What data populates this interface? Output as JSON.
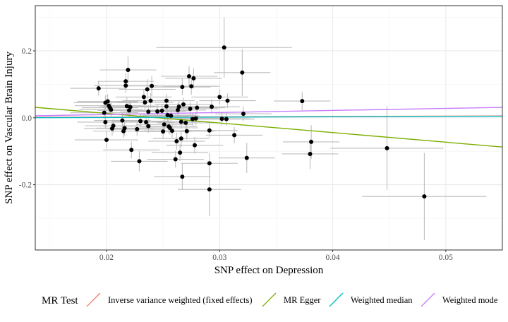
{
  "chart_data": {
    "type": "scatter",
    "xlabel": "SNP effect on Depression",
    "ylabel": "SNP effect on Vascular Brain Injury",
    "xlim": [
      0.0137,
      0.055
    ],
    "ylim": [
      -0.395,
      0.335
    ],
    "x_ticks": [
      {
        "value": 0.02,
        "label": "0.02"
      },
      {
        "value": 0.03,
        "label": "0.03"
      },
      {
        "value": 0.04,
        "label": "0.04"
      },
      {
        "value": 0.05,
        "label": "0.05"
      }
    ],
    "y_ticks": [
      {
        "value": -0.2,
        "label": "-0.2"
      },
      {
        "value": 0.0,
        "label": "0.0"
      },
      {
        "value": 0.2,
        "label": "0.2"
      }
    ],
    "grid": true,
    "legend": {
      "title": "MR Test",
      "position": "bottom"
    },
    "lines": [
      {
        "name": "Inverse variance weighted (fixed effects)",
        "color": "#F8766D",
        "intercept": 0.0,
        "slope": 0.1
      },
      {
        "name": "MR Egger",
        "color": "#7CAE00",
        "intercept": 0.0705,
        "slope": -2.87
      },
      {
        "name": "Weighted median",
        "color": "#00BFC4",
        "intercept": -0.0013,
        "slope": 0.11
      },
      {
        "name": "Weighted mode",
        "color": "#C77CFF",
        "intercept": -0.0025,
        "slope": 0.61
      }
    ],
    "points": [
      {
        "x": 0.0193,
        "y": 0.088,
        "sx": 0.0025,
        "sy": 0.022
      },
      {
        "x": 0.0198,
        "y": 0.015,
        "sx": 0.003,
        "sy": 0.02
      },
      {
        "x": 0.0199,
        "y": 0.045,
        "sx": 0.0028,
        "sy": 0.022
      },
      {
        "x": 0.0199,
        "y": -0.013,
        "sx": 0.0025,
        "sy": 0.02
      },
      {
        "x": 0.02,
        "y": -0.066,
        "sx": 0.0028,
        "sy": 0.025
      },
      {
        "x": 0.0201,
        "y": 0.049,
        "sx": 0.0027,
        "sy": 0.022
      },
      {
        "x": 0.0202,
        "y": 0.036,
        "sx": 0.003,
        "sy": 0.02
      },
      {
        "x": 0.0203,
        "y": 0.03,
        "sx": 0.0025,
        "sy": 0.022
      },
      {
        "x": 0.0204,
        "y": 0.024,
        "sx": 0.0028,
        "sy": 0.02
      },
      {
        "x": 0.0205,
        "y": -0.032,
        "sx": 0.0025,
        "sy": 0.022
      },
      {
        "x": 0.0206,
        "y": -0.024,
        "sx": 0.0025,
        "sy": 0.02
      },
      {
        "x": 0.0214,
        "y": -0.008,
        "sx": 0.0025,
        "sy": 0.022
      },
      {
        "x": 0.0215,
        "y": -0.04,
        "sx": 0.0027,
        "sy": 0.02
      },
      {
        "x": 0.0216,
        "y": -0.031,
        "sx": 0.0025,
        "sy": 0.022
      },
      {
        "x": 0.0217,
        "y": 0.109,
        "sx": 0.0025,
        "sy": 0.024
      },
      {
        "x": 0.0217,
        "y": 0.096,
        "sx": 0.0028,
        "sy": 0.022
      },
      {
        "x": 0.0218,
        "y": 0.035,
        "sx": 0.0025,
        "sy": 0.025
      },
      {
        "x": 0.0219,
        "y": 0.143,
        "sx": 0.0025,
        "sy": 0.04
      },
      {
        "x": 0.022,
        "y": 0.022,
        "sx": 0.0028,
        "sy": 0.022
      },
      {
        "x": 0.0221,
        "y": 0.032,
        "sx": 0.0025,
        "sy": 0.02
      },
      {
        "x": 0.0222,
        "y": -0.096,
        "sx": 0.0025,
        "sy": 0.025
      },
      {
        "x": 0.0227,
        "y": -0.034,
        "sx": 0.0025,
        "sy": 0.02
      },
      {
        "x": 0.0229,
        "y": -0.13,
        "sx": 0.0025,
        "sy": 0.03
      },
      {
        "x": 0.023,
        "y": -0.01,
        "sx": 0.0025,
        "sy": 0.02
      },
      {
        "x": 0.0233,
        "y": 0.062,
        "sx": 0.0025,
        "sy": 0.024
      },
      {
        "x": 0.0234,
        "y": 0.046,
        "sx": 0.0025,
        "sy": 0.022
      },
      {
        "x": 0.0235,
        "y": -0.013,
        "sx": 0.0025,
        "sy": 0.02
      },
      {
        "x": 0.0236,
        "y": 0.085,
        "sx": 0.0025,
        "sy": 0.03
      },
      {
        "x": 0.0237,
        "y": -0.025,
        "sx": 0.0025,
        "sy": 0.02
      },
      {
        "x": 0.0237,
        "y": 0.018,
        "sx": 0.0025,
        "sy": 0.02
      },
      {
        "x": 0.0239,
        "y": 0.051,
        "sx": 0.0025,
        "sy": 0.022
      },
      {
        "x": 0.024,
        "y": 0.095,
        "sx": 0.0025,
        "sy": 0.03
      },
      {
        "x": 0.0245,
        "y": 0.019,
        "sx": 0.0025,
        "sy": 0.02
      },
      {
        "x": 0.0249,
        "y": 0.021,
        "sx": 0.0025,
        "sy": 0.02
      },
      {
        "x": 0.025,
        "y": -0.041,
        "sx": 0.0025,
        "sy": 0.022
      },
      {
        "x": 0.0251,
        "y": -0.02,
        "sx": 0.0025,
        "sy": 0.02
      },
      {
        "x": 0.0253,
        "y": 0.034,
        "sx": 0.0025,
        "sy": 0.022
      },
      {
        "x": 0.0253,
        "y": 0.051,
        "sx": 0.0025,
        "sy": 0.02
      },
      {
        "x": 0.0254,
        "y": 0.008,
        "sx": 0.0025,
        "sy": 0.02
      },
      {
        "x": 0.0255,
        "y": -0.026,
        "sx": 0.0025,
        "sy": 0.02
      },
      {
        "x": 0.0256,
        "y": -0.03,
        "sx": 0.0025,
        "sy": 0.02
      },
      {
        "x": 0.0257,
        "y": 0.006,
        "sx": 0.0025,
        "sy": 0.02
      },
      {
        "x": 0.0258,
        "y": -0.039,
        "sx": 0.0025,
        "sy": 0.02
      },
      {
        "x": 0.0261,
        "y": -0.124,
        "sx": 0.0025,
        "sy": 0.025
      },
      {
        "x": 0.0262,
        "y": -0.07,
        "sx": 0.0025,
        "sy": 0.025
      },
      {
        "x": 0.0263,
        "y": 0.023,
        "sx": 0.0025,
        "sy": 0.02
      },
      {
        "x": 0.0264,
        "y": 0.033,
        "sx": 0.0025,
        "sy": 0.02
      },
      {
        "x": 0.0265,
        "y": -0.104,
        "sx": 0.0025,
        "sy": 0.025
      },
      {
        "x": 0.0266,
        "y": -0.062,
        "sx": 0.0025,
        "sy": 0.025
      },
      {
        "x": 0.0266,
        "y": -0.012,
        "sx": 0.0025,
        "sy": 0.02
      },
      {
        "x": 0.0267,
        "y": 0.092,
        "sx": 0.0025,
        "sy": 0.025
      },
      {
        "x": 0.0267,
        "y": -0.176,
        "sx": 0.0025,
        "sy": 0.04
      },
      {
        "x": 0.0268,
        "y": 0.04,
        "sx": 0.0025,
        "sy": 0.02
      },
      {
        "x": 0.027,
        "y": -0.015,
        "sx": 0.0025,
        "sy": 0.02
      },
      {
        "x": 0.0271,
        "y": -0.04,
        "sx": 0.0025,
        "sy": 0.025
      },
      {
        "x": 0.0273,
        "y": 0.124,
        "sx": 0.0025,
        "sy": 0.03
      },
      {
        "x": 0.0274,
        "y": 0.027,
        "sx": 0.0025,
        "sy": 0.02
      },
      {
        "x": 0.0275,
        "y": 0.094,
        "sx": 0.0025,
        "sy": 0.025
      },
      {
        "x": 0.0276,
        "y": -0.004,
        "sx": 0.0025,
        "sy": 0.02
      },
      {
        "x": 0.0277,
        "y": 0.118,
        "sx": 0.0025,
        "sy": 0.03
      },
      {
        "x": 0.0278,
        "y": -0.082,
        "sx": 0.0025,
        "sy": 0.025
      },
      {
        "x": 0.0279,
        "y": -0.002,
        "sx": 0.0025,
        "sy": 0.02
      },
      {
        "x": 0.028,
        "y": 0.03,
        "sx": 0.0025,
        "sy": 0.02
      },
      {
        "x": 0.0291,
        "y": -0.038,
        "sx": 0.0025,
        "sy": 0.02
      },
      {
        "x": 0.0291,
        "y": -0.136,
        "sx": 0.0025,
        "sy": 0.03
      },
      {
        "x": 0.0291,
        "y": -0.214,
        "sx": 0.0028,
        "sy": 0.08
      },
      {
        "x": 0.0293,
        "y": 0.033,
        "sx": 0.0025,
        "sy": 0.022
      },
      {
        "x": 0.03,
        "y": 0.062,
        "sx": 0.0025,
        "sy": 0.022
      },
      {
        "x": 0.0302,
        "y": -0.003,
        "sx": 0.0025,
        "sy": 0.02
      },
      {
        "x": 0.0304,
        "y": 0.21,
        "sx": 0.006,
        "sy": 0.09
      },
      {
        "x": 0.0306,
        "y": -0.004,
        "sx": 0.0025,
        "sy": 0.02
      },
      {
        "x": 0.0307,
        "y": 0.051,
        "sx": 0.0025,
        "sy": 0.022
      },
      {
        "x": 0.0313,
        "y": -0.052,
        "sx": 0.0025,
        "sy": 0.025
      },
      {
        "x": 0.032,
        "y": 0.135,
        "sx": 0.0025,
        "sy": 0.07
      },
      {
        "x": 0.0321,
        "y": 0.012,
        "sx": 0.0025,
        "sy": 0.022
      },
      {
        "x": 0.0324,
        "y": -0.12,
        "sx": 0.0025,
        "sy": 0.045
      },
      {
        "x": 0.0373,
        "y": 0.05,
        "sx": 0.0025,
        "sy": 0.028
      },
      {
        "x": 0.038,
        "y": -0.108,
        "sx": 0.0025,
        "sy": 0.045
      },
      {
        "x": 0.0381,
        "y": -0.072,
        "sx": 0.0025,
        "sy": 0.05
      },
      {
        "x": 0.0448,
        "y": -0.091,
        "sx": 0.005,
        "sy": 0.125
      },
      {
        "x": 0.0481,
        "y": -0.235,
        "sx": 0.0055,
        "sy": 0.13
      }
    ]
  }
}
